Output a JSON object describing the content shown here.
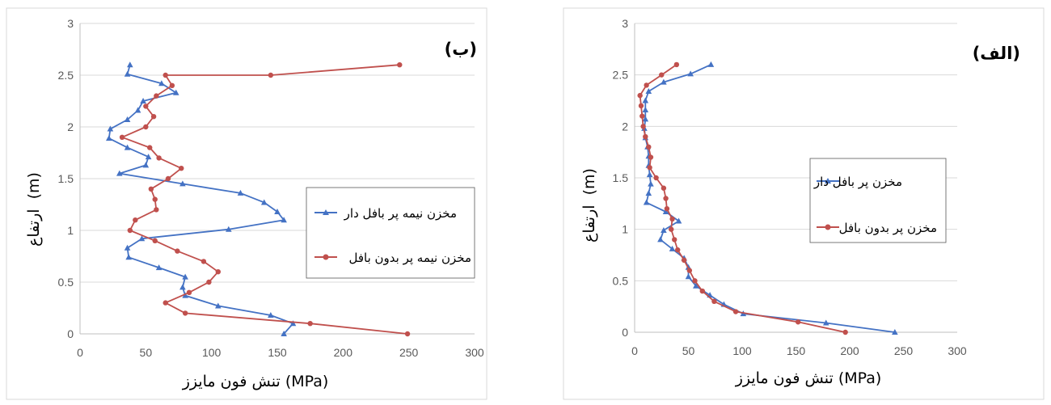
{
  "colors": {
    "blue": "#4472C4",
    "red": "#C0504D",
    "grid": "#D9D9D9",
    "axis": "#BFBFBF"
  },
  "chart_data": [
    {
      "type": "line",
      "panel_label": "(ب)",
      "xlabel": "تنش فون مایزز (MPa)",
      "ylabel_text": "ارتفاع",
      "ylabel_unit": "(m)",
      "xlim": [
        0,
        300
      ],
      "ylim": [
        0,
        3
      ],
      "xticks": [
        "0",
        "50",
        "100",
        "150",
        "200",
        "250",
        "300"
      ],
      "yticks": [
        "0",
        "0.5",
        "1",
        "1.5",
        "2",
        "2.5",
        "3"
      ],
      "legend": "right-middle",
      "grid": "horizontal",
      "series": [
        {
          "name": "مخزن نیمه پر بافل دار",
          "marker": "triangle",
          "color": "#4472C4",
          "points": [
            [
              155,
              0
            ],
            [
              162,
              0.1
            ],
            [
              145,
              0.18
            ],
            [
              105,
              0.27
            ],
            [
              80,
              0.37
            ],
            [
              78,
              0.45
            ],
            [
              80,
              0.55
            ],
            [
              60,
              0.64
            ],
            [
              37,
              0.74
            ],
            [
              36,
              0.83
            ],
            [
              47,
              0.92
            ],
            [
              113,
              1.01
            ],
            [
              155,
              1.1
            ],
            [
              150,
              1.18
            ],
            [
              140,
              1.27
            ],
            [
              122,
              1.36
            ],
            [
              78,
              1.45
            ],
            [
              30,
              1.55
            ],
            [
              50,
              1.63
            ],
            [
              52,
              1.71
            ],
            [
              36,
              1.8
            ],
            [
              22,
              1.89
            ],
            [
              23,
              1.98
            ],
            [
              36,
              2.07
            ],
            [
              44,
              2.16
            ],
            [
              48,
              2.25
            ],
            [
              73,
              2.33
            ],
            [
              62,
              2.42
            ],
            [
              36,
              2.51
            ],
            [
              38,
              2.6
            ]
          ]
        },
        {
          "name": "مخزن نیمه پر بدون بافل",
          "marker": "circle",
          "color": "#C0504D",
          "points": [
            [
              249,
              0
            ],
            [
              175,
              0.1
            ],
            [
              80,
              0.2
            ],
            [
              65,
              0.3
            ],
            [
              83,
              0.4
            ],
            [
              98,
              0.5
            ],
            [
              105,
              0.6
            ],
            [
              94,
              0.7
            ],
            [
              74,
              0.8
            ],
            [
              57,
              0.9
            ],
            [
              38,
              1.0
            ],
            [
              42,
              1.1
            ],
            [
              58,
              1.2
            ],
            [
              57,
              1.3
            ],
            [
              54,
              1.4
            ],
            [
              67,
              1.5
            ],
            [
              77,
              1.6
            ],
            [
              60,
              1.7
            ],
            [
              53,
              1.8
            ],
            [
              32,
              1.9
            ],
            [
              50,
              2.0
            ],
            [
              56,
              2.1
            ],
            [
              50,
              2.2
            ],
            [
              58,
              2.3
            ],
            [
              70,
              2.4
            ],
            [
              65,
              2.5
            ],
            [
              145,
              2.5
            ],
            [
              243,
              2.6
            ]
          ]
        }
      ]
    },
    {
      "type": "line",
      "panel_label": "(الف)",
      "xlabel": "تنش فون مایزز (MPa)",
      "ylabel_text": "ارتفاع",
      "ylabel_unit": "(m)",
      "xlim": [
        0,
        300
      ],
      "ylim": [
        0,
        3
      ],
      "xticks": [
        "0",
        "50",
        "100",
        "150",
        "200",
        "250",
        "300"
      ],
      "yticks": [
        "0",
        "0.5",
        "1",
        "1.5",
        "2",
        "2.5",
        "3"
      ],
      "legend": "right-middle",
      "grid": "horizontal",
      "series": [
        {
          "name": "مخزن پر بافل دار",
          "marker": "triangle",
          "color": "#4472C4",
          "points": [
            [
              242,
              0
            ],
            [
              178,
              0.09
            ],
            [
              101,
              0.18
            ],
            [
              83,
              0.27
            ],
            [
              70,
              0.36
            ],
            [
              57,
              0.45
            ],
            [
              50,
              0.54
            ],
            [
              50,
              0.63
            ],
            [
              46,
              0.72
            ],
            [
              35,
              0.81
            ],
            [
              24,
              0.9
            ],
            [
              27,
              0.99
            ],
            [
              41,
              1.08
            ],
            [
              29,
              1.17
            ],
            [
              11,
              1.26
            ],
            [
              13,
              1.35
            ],
            [
              15,
              1.44
            ],
            [
              14,
              1.53
            ],
            [
              13,
              1.62
            ],
            [
              13,
              1.71
            ],
            [
              12,
              1.8
            ],
            [
              10,
              1.89
            ],
            [
              9,
              1.98
            ],
            [
              10,
              2.07
            ],
            [
              10,
              2.16
            ],
            [
              10,
              2.25
            ],
            [
              13,
              2.34
            ],
            [
              27,
              2.43
            ],
            [
              52,
              2.51
            ],
            [
              71,
              2.6
            ]
          ]
        },
        {
          "name": "مخزن پر بدون بافل",
          "marker": "circle",
          "color": "#C0504D",
          "points": [
            [
              196,
              0
            ],
            [
              152,
              0.1
            ],
            [
              94,
              0.2
            ],
            [
              74,
              0.3
            ],
            [
              63,
              0.4
            ],
            [
              56,
              0.5
            ],
            [
              51,
              0.6
            ],
            [
              46,
              0.7
            ],
            [
              40,
              0.8
            ],
            [
              37,
              0.9
            ],
            [
              34,
              1.0
            ],
            [
              35,
              1.1
            ],
            [
              30,
              1.2
            ],
            [
              29,
              1.3
            ],
            [
              27,
              1.4
            ],
            [
              20,
              1.5
            ],
            [
              14,
              1.6
            ],
            [
              15,
              1.7
            ],
            [
              13,
              1.8
            ],
            [
              10,
              1.9
            ],
            [
              8,
              2.0
            ],
            [
              7,
              2.1
            ],
            [
              6,
              2.2
            ],
            [
              5,
              2.3
            ],
            [
              11,
              2.4
            ],
            [
              25,
              2.5
            ],
            [
              39,
              2.6
            ]
          ]
        }
      ]
    }
  ]
}
